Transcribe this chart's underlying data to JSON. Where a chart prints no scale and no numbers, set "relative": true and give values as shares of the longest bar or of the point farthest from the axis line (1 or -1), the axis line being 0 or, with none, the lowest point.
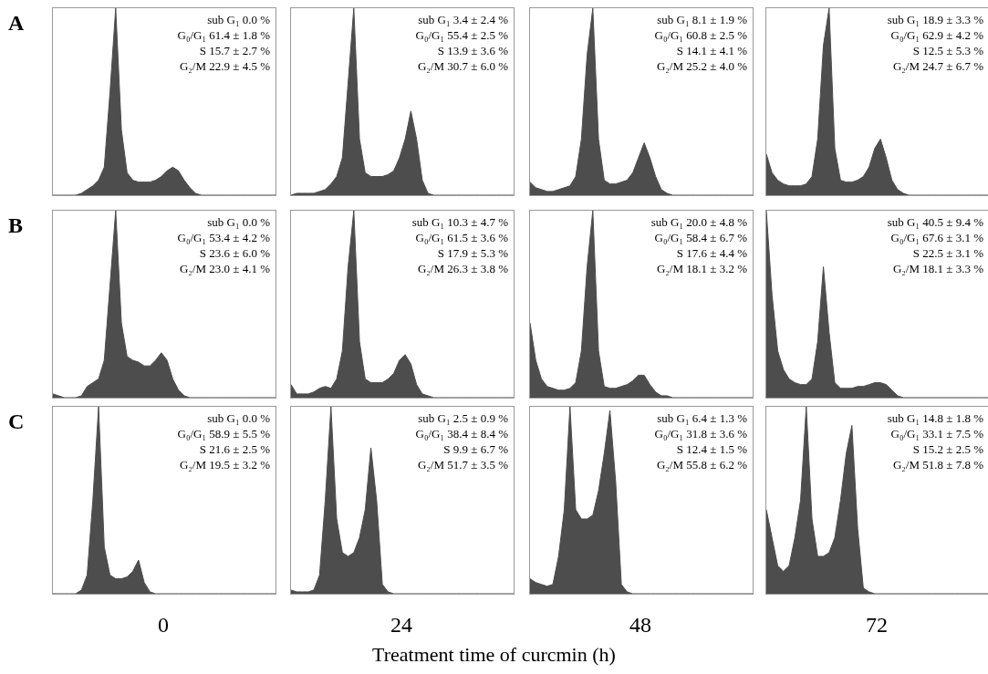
{
  "chart_data": [
    {
      "type": "area",
      "title": "A",
      "relative": true,
      "color": "#4d4d4d",
      "categories": [
        null,
        null,
        null,
        null,
        null,
        null,
        null,
        null,
        null,
        null,
        null,
        null,
        null,
        null,
        null,
        null,
        null,
        null,
        null,
        null,
        null,
        null,
        null,
        null,
        null,
        null,
        null,
        null,
        null,
        null,
        null,
        null,
        null,
        null,
        null,
        null,
        null,
        null,
        null,
        null
      ],
      "values": [
        0,
        0,
        0,
        0,
        0,
        0.01,
        0.03,
        0.05,
        0.08,
        0.15,
        0.55,
        1,
        0.35,
        0.12,
        0.08,
        0.07,
        0.07,
        0.07,
        0.08,
        0.1,
        0.13,
        0.15,
        0.13,
        0.08,
        0.04,
        0.01,
        0,
        0,
        0,
        0,
        0,
        0,
        0,
        0,
        0,
        0,
        0,
        0,
        0,
        0
      ],
      "annotations": [
        "sub G₁ 0.0 %",
        "G₀/G₁ 61.4 ± 1.8 %",
        "S 15.7 ± 2.7 %",
        "G₂/M 22.9 ± 4.5 %"
      ]
    },
    {
      "type": "area",
      "relative": true,
      "color": "#4d4d4d",
      "categories": [
        null,
        null,
        null,
        null,
        null,
        null,
        null,
        null,
        null,
        null,
        null,
        null,
        null,
        null,
        null,
        null,
        null,
        null,
        null,
        null,
        null,
        null,
        null,
        null,
        null,
        null,
        null,
        null,
        null,
        null,
        null,
        null,
        null,
        null,
        null,
        null,
        null,
        null,
        null,
        null
      ],
      "values": [
        0,
        0.01,
        0.01,
        0.01,
        0.01,
        0.02,
        0.03,
        0.06,
        0.1,
        0.2,
        0.6,
        1,
        0.3,
        0.12,
        0.1,
        0.1,
        0.1,
        0.11,
        0.13,
        0.2,
        0.3,
        0.45,
        0.3,
        0.08,
        0.01,
        0,
        0,
        0,
        0,
        0,
        0,
        0,
        0,
        0,
        0,
        0,
        0,
        0,
        0,
        0
      ],
      "annotations": [
        "sub G₁ 3.4 ± 2.4 %",
        "G₀/G₁ 55.4 ± 2.5 %",
        "S 13.9 ± 3.6 %",
        "G₂/M 30.7 ± 6.0 %"
      ]
    },
    {
      "type": "area",
      "relative": true,
      "color": "#4d4d4d",
      "categories": [
        null,
        null,
        null,
        null,
        null,
        null,
        null,
        null,
        null,
        null,
        null,
        null,
        null,
        null,
        null,
        null,
        null,
        null,
        null,
        null,
        null,
        null,
        null,
        null,
        null,
        null,
        null,
        null,
        null,
        null,
        null,
        null,
        null,
        null,
        null,
        null,
        null,
        null,
        null,
        null
      ],
      "values": [
        0.07,
        0.04,
        0.03,
        0.02,
        0.02,
        0.03,
        0.04,
        0.05,
        0.1,
        0.3,
        0.75,
        1,
        0.3,
        0.08,
        0.06,
        0.06,
        0.07,
        0.08,
        0.12,
        0.2,
        0.28,
        0.2,
        0.1,
        0.03,
        0.01,
        0,
        0,
        0,
        0,
        0,
        0,
        0,
        0,
        0,
        0,
        0,
        0,
        0,
        0,
        0
      ],
      "annotations": [
        "sub G₁ 8.1 ± 1.9 %",
        "G₀/G₁ 60.8 ± 2.5 %",
        "S 14.1 ± 4.1 %",
        "G₂/M 25.2 ± 4.0 %"
      ]
    },
    {
      "type": "area",
      "relative": true,
      "color": "#4d4d4d",
      "categories": [
        null,
        null,
        null,
        null,
        null,
        null,
        null,
        null,
        null,
        null,
        null,
        null,
        null,
        null,
        null,
        null,
        null,
        null,
        null,
        null,
        null,
        null,
        null,
        null,
        null,
        null,
        null,
        null,
        null,
        null,
        null,
        null,
        null,
        null,
        null,
        null,
        null,
        null,
        null,
        null
      ],
      "values": [
        0.22,
        0.12,
        0.08,
        0.06,
        0.05,
        0.05,
        0.05,
        0.06,
        0.1,
        0.3,
        0.8,
        1,
        0.25,
        0.08,
        0.07,
        0.07,
        0.08,
        0.1,
        0.15,
        0.25,
        0.3,
        0.2,
        0.08,
        0.03,
        0.01,
        0,
        0,
        0,
        0,
        0,
        0,
        0,
        0,
        0,
        0,
        0,
        0,
        0,
        0,
        0
      ],
      "annotations": [
        "sub G₁ 18.9 ± 3.3 %",
        "G₀/G₁ 62.9 ± 4.2 %",
        "S 12.5 ± 5.3 %",
        "G₂/M 24.7 ± 6.7 %"
      ]
    },
    {
      "type": "area",
      "title": "B",
      "relative": true,
      "color": "#4d4d4d",
      "categories": [
        null,
        null,
        null,
        null,
        null,
        null,
        null,
        null,
        null,
        null,
        null,
        null,
        null,
        null,
        null,
        null,
        null,
        null,
        null,
        null,
        null,
        null,
        null,
        null,
        null,
        null,
        null,
        null,
        null,
        null,
        null,
        null,
        null,
        null,
        null,
        null,
        null,
        null,
        null,
        null
      ],
      "values": [
        0.02,
        0.01,
        0,
        0,
        0,
        0.01,
        0.06,
        0.08,
        0.1,
        0.2,
        0.6,
        1,
        0.4,
        0.22,
        0.2,
        0.19,
        0.17,
        0.17,
        0.2,
        0.24,
        0.2,
        0.1,
        0.04,
        0.01,
        0,
        0,
        0,
        0,
        0,
        0,
        0,
        0,
        0,
        0,
        0,
        0,
        0,
        0,
        0,
        0
      ],
      "annotations": [
        "sub G₁ 0.0 %",
        "G₀/G₁ 53.4 ± 4.2 %",
        "S 23.6 ± 6.0 %",
        "G₂/M 23.0 ± 4.1 %"
      ]
    },
    {
      "type": "area",
      "relative": true,
      "color": "#4d4d4d",
      "categories": [
        null,
        null,
        null,
        null,
        null,
        null,
        null,
        null,
        null,
        null,
        null,
        null,
        null,
        null,
        null,
        null,
        null,
        null,
        null,
        null,
        null,
        null,
        null,
        null,
        null,
        null,
        null,
        null,
        null,
        null,
        null,
        null,
        null,
        null,
        null,
        null,
        null,
        null,
        null,
        null
      ],
      "values": [
        0.07,
        0.02,
        0.02,
        0.02,
        0.03,
        0.05,
        0.06,
        0.05,
        0.1,
        0.25,
        0.7,
        1,
        0.3,
        0.1,
        0.08,
        0.08,
        0.08,
        0.1,
        0.13,
        0.2,
        0.23,
        0.18,
        0.07,
        0.02,
        0.01,
        0,
        0,
        0,
        0,
        0,
        0,
        0,
        0,
        0,
        0,
        0,
        0,
        0,
        0,
        0
      ],
      "annotations": [
        "sub G₁ 10.3 ± 4.7 %",
        "G₀/G₁ 61.5 ± 3.6 %",
        "S 17.9 ± 5.3 %",
        "G₂/M 26.3 ± 3.8 %"
      ]
    },
    {
      "type": "area",
      "relative": true,
      "color": "#4d4d4d",
      "categories": [
        null,
        null,
        null,
        null,
        null,
        null,
        null,
        null,
        null,
        null,
        null,
        null,
        null,
        null,
        null,
        null,
        null,
        null,
        null,
        null,
        null,
        null,
        null,
        null,
        null,
        null,
        null,
        null,
        null,
        null,
        null,
        null,
        null,
        null,
        null,
        null,
        null,
        null,
        null,
        null
      ],
      "values": [
        0.4,
        0.2,
        0.1,
        0.06,
        0.05,
        0.04,
        0.04,
        0.05,
        0.08,
        0.25,
        0.7,
        1,
        0.25,
        0.06,
        0.05,
        0.05,
        0.06,
        0.07,
        0.09,
        0.12,
        0.12,
        0.07,
        0.03,
        0.01,
        0.01,
        0,
        0,
        0,
        0,
        0,
        0,
        0,
        0,
        0,
        0,
        0,
        0,
        0,
        0,
        0
      ],
      "annotations": [
        "sub G₁ 20.0 ± 4.8 %",
        "G₀/G₁ 58.4 ± 6.7 %",
        "S 17.6 ± 4.4 %",
        "G₂/M 18.1 ± 3.2 %"
      ]
    },
    {
      "type": "area",
      "relative": true,
      "color": "#4d4d4d",
      "categories": [
        null,
        null,
        null,
        null,
        null,
        null,
        null,
        null,
        null,
        null,
        null,
        null,
        null,
        null,
        null,
        null,
        null,
        null,
        null,
        null,
        null,
        null,
        null,
        null,
        null,
        null,
        null,
        null,
        null,
        null,
        null,
        null,
        null,
        null,
        null,
        null,
        null,
        null,
        null,
        null
      ],
      "values": [
        1,
        0.55,
        0.25,
        0.15,
        0.1,
        0.08,
        0.07,
        0.07,
        0.1,
        0.3,
        0.7,
        0.35,
        0.08,
        0.05,
        0.05,
        0.05,
        0.06,
        0.06,
        0.07,
        0.08,
        0.08,
        0.07,
        0.04,
        0.01,
        0,
        0,
        0,
        0,
        0,
        0,
        0,
        0,
        0,
        0,
        0,
        0,
        0,
        0,
        0,
        0
      ],
      "annotations": [
        "sub G₁ 40.5 ± 9.4 %",
        "G₀/G₁ 67.6 ± 3.1 %",
        "S 22.5 ± 3.1 %",
        "G₂/M 18.1 ± 3.3 %"
      ]
    },
    {
      "type": "area",
      "title": "C",
      "xlabel": "0",
      "relative": true,
      "color": "#4d4d4d",
      "categories": [
        null,
        null,
        null,
        null,
        null,
        null,
        null,
        null,
        null,
        null,
        null,
        null,
        null,
        null,
        null,
        null,
        null,
        null,
        null,
        null,
        null,
        null,
        null,
        null,
        null,
        null,
        null,
        null,
        null,
        null,
        null,
        null,
        null,
        null,
        null,
        null,
        null,
        null,
        null,
        null
      ],
      "values": [
        0,
        0,
        0,
        0,
        0,
        0.02,
        0.1,
        0.5,
        1,
        0.25,
        0.1,
        0.08,
        0.08,
        0.09,
        0.12,
        0.18,
        0.06,
        0.01,
        0,
        0,
        0,
        0,
        0,
        0,
        0,
        0,
        0,
        0,
        0,
        0,
        0,
        0,
        0,
        0,
        0,
        0,
        0,
        0,
        0,
        0
      ],
      "annotations": [
        "sub G₁ 0.0 %",
        "G₀/G₁ 58.9 ± 5.5 %",
        "S 21.6 ± 2.5 %",
        "G₂/M 19.5 ± 3.2 %"
      ]
    },
    {
      "type": "area",
      "xlabel": "24",
      "relative": true,
      "color": "#4d4d4d",
      "categories": [
        null,
        null,
        null,
        null,
        null,
        null,
        null,
        null,
        null,
        null,
        null,
        null,
        null,
        null,
        null,
        null,
        null,
        null,
        null,
        null,
        null,
        null,
        null,
        null,
        null,
        null,
        null,
        null,
        null,
        null,
        null,
        null,
        null,
        null,
        null,
        null,
        null,
        null,
        null,
        null
      ],
      "values": [
        0.02,
        0.01,
        0.01,
        0.01,
        0.02,
        0.1,
        0.5,
        1,
        0.4,
        0.22,
        0.2,
        0.22,
        0.3,
        0.45,
        0.78,
        0.5,
        0.05,
        0.01,
        0,
        0,
        0,
        0,
        0,
        0,
        0,
        0,
        0,
        0,
        0,
        0,
        0,
        0,
        0,
        0,
        0,
        0,
        0,
        0,
        0,
        0
      ],
      "annotations": [
        "sub G₁ 2.5 ± 0.9 %",
        "G₀/G₁ 38.4 ± 8.4 %",
        "S 9.9 ± 6.7 %",
        "G₂/M 51.7 ± 3.5 %"
      ]
    },
    {
      "type": "area",
      "xlabel": "48",
      "relative": true,
      "color": "#4d4d4d",
      "categories": [
        null,
        null,
        null,
        null,
        null,
        null,
        null,
        null,
        null,
        null,
        null,
        null,
        null,
        null,
        null,
        null,
        null,
        null,
        null,
        null,
        null,
        null,
        null,
        null,
        null,
        null,
        null,
        null,
        null,
        null,
        null,
        null,
        null,
        null,
        null,
        null,
        null,
        null,
        null,
        null
      ],
      "values": [
        0.08,
        0.06,
        0.05,
        0.04,
        0.05,
        0.2,
        0.45,
        1,
        0.45,
        0.4,
        0.4,
        0.42,
        0.55,
        0.75,
        0.98,
        0.6,
        0.05,
        0.01,
        0,
        0,
        0,
        0,
        0,
        0,
        0,
        0,
        0,
        0,
        0,
        0,
        0,
        0,
        0,
        0,
        0,
        0,
        0,
        0,
        0,
        0
      ],
      "annotations": [
        "sub G₁ 6.4 ± 1.3 %",
        "G₀/G₁ 31.8 ± 3.6 %",
        "S 12.4 ± 1.5 %",
        "G₂/M 55.8 ± 6.2 %"
      ]
    },
    {
      "type": "area",
      "xlabel": "72",
      "relative": true,
      "color": "#4d4d4d",
      "categories": [
        null,
        null,
        null,
        null,
        null,
        null,
        null,
        null,
        null,
        null,
        null,
        null,
        null,
        null,
        null,
        null,
        null,
        null,
        null,
        null,
        null,
        null,
        null,
        null,
        null,
        null,
        null,
        null,
        null,
        null,
        null,
        null,
        null,
        null,
        null,
        null,
        null,
        null,
        null,
        null
      ],
      "values": [
        0.45,
        0.3,
        0.15,
        0.12,
        0.15,
        0.3,
        0.5,
        1,
        0.4,
        0.2,
        0.2,
        0.22,
        0.3,
        0.5,
        0.75,
        0.9,
        0.35,
        0.03,
        0.01,
        0,
        0,
        0,
        0,
        0,
        0,
        0,
        0,
        0,
        0,
        0,
        0,
        0,
        0,
        0,
        0,
        0,
        0,
        0,
        0,
        0
      ],
      "annotations": [
        "sub G₁ 14.8 ± 1.8 %",
        "G₀/G₁ 33.1 ± 7.5 %",
        "S 15.2 ± 2.5 %",
        "G₂/M 51.8 ± 7.8 %"
      ]
    },
    {
      "type": "other",
      "title": "Treatment time of curcmin (h)"
    }
  ]
}
